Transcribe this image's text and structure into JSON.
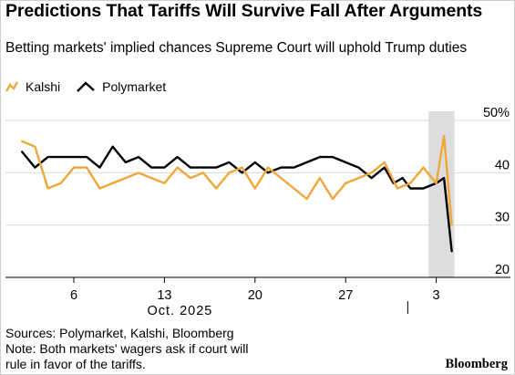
{
  "header": {
    "title": "Predictions That Tariffs Will Survive Fall After Arguments",
    "subtitle": "Betting markets' implied chances Supreme Court will uphold Trump duties"
  },
  "legend": {
    "kalshi": "Kalshi",
    "polymarket": "Polymarket"
  },
  "footer": {
    "sources": "Sources: Polymarket, Kalshi, Bloomberg",
    "note_line1": "Note: Both markets' wagers ask if court will",
    "note_line2": "rule in favor of the tariffs.",
    "brand": "Bloomberg"
  },
  "colors": {
    "kalshi": "#f0a73a",
    "polymarket": "#000000",
    "shade": "#dddddd",
    "grid": "#d9d9d9"
  },
  "chart_data": {
    "type": "line",
    "title": "Predictions That Tariffs Will Survive Fall After Arguments",
    "subtitle": "Betting markets' implied chances Supreme Court will uphold Trump duties",
    "x_unit": "day",
    "x_ticks": [
      {
        "day": 6,
        "label": "6"
      },
      {
        "day": 13,
        "label": "13"
      },
      {
        "day": 20,
        "label": "20"
      },
      {
        "day": 27,
        "label": "27"
      },
      {
        "day": 34,
        "label": "3"
      }
    ],
    "month_label": "Oct. 2025",
    "month_end_day": 31.8,
    "y_ticks": [
      {
        "value": 20,
        "label": "20"
      },
      {
        "value": 30,
        "label": "30"
      },
      {
        "value": 40,
        "label": "40"
      },
      {
        "value": 50,
        "label": "50%"
      }
    ],
    "xlim": [
      1,
      36
    ],
    "ylim": [
      20,
      50
    ],
    "highlight_range": [
      33.4,
      35.4
    ],
    "series": [
      {
        "name": "Polymarket",
        "color": "#000000",
        "x": [
          2,
          3,
          4,
          5,
          6,
          7,
          8,
          9,
          10,
          11,
          12,
          13,
          14,
          15,
          16,
          17,
          18,
          19,
          20,
          21,
          22,
          23,
          24,
          25,
          26,
          27,
          28,
          29,
          30,
          30.7,
          31.4,
          32,
          33,
          34,
          34.6,
          35.2
        ],
        "y": [
          44,
          41,
          43,
          43,
          43,
          43,
          41,
          45,
          42,
          43,
          41,
          41,
          43,
          41,
          41,
          41,
          42,
          40,
          42,
          40,
          41,
          41,
          42,
          43,
          43,
          42,
          41,
          39,
          41,
          38,
          39,
          37,
          37,
          38,
          39,
          25
        ]
      },
      {
        "name": "Kalshi",
        "color": "#f0a73a",
        "x": [
          2,
          3,
          4,
          5,
          6,
          7,
          8,
          9,
          10,
          11,
          12,
          13,
          14,
          15,
          16,
          17,
          18,
          19,
          20,
          21,
          22,
          23,
          24,
          25,
          26,
          27,
          28,
          29,
          30,
          31,
          32,
          33,
          34,
          34.6,
          35.2
        ],
        "y": [
          46,
          45,
          37,
          38,
          41,
          41,
          37,
          38,
          39,
          40,
          39,
          38,
          41,
          39,
          40,
          37,
          40,
          41,
          37,
          41,
          39,
          37,
          35,
          39,
          35,
          38,
          39,
          40,
          42,
          37,
          38,
          41,
          38,
          47,
          30
        ]
      }
    ]
  }
}
